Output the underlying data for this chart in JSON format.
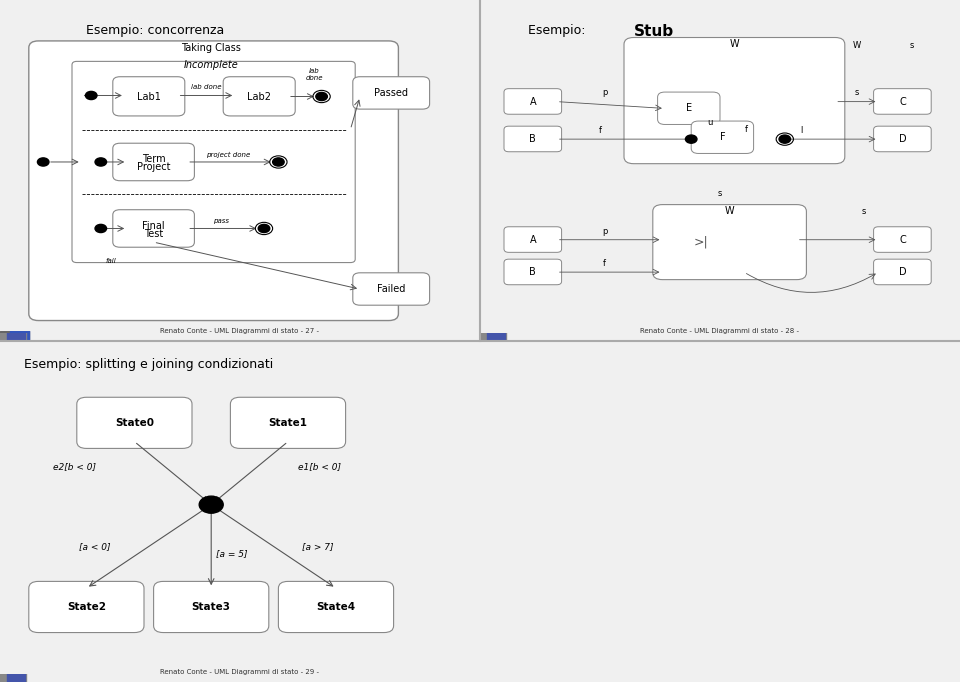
{
  "bg_color": "#f0f0f0",
  "panel_bg": "#ffffff",
  "title1": "Esempio: concorrenza",
  "title2": "Esempio: Stub",
  "title3": "Esempio: splitting e joining condizionati",
  "footer1": "Renato Conte - UML Diagrammi di stato - 27 -",
  "footer2": "Renato Conte - UML Diagrammi di stato - 28 -",
  "footer3": "Renato Conte - UML Diagrammi di stato - 29 -",
  "accent_color": "#4455aa",
  "line_color": "#555555",
  "state_fill": "#ffffff",
  "state_edge": "#888888"
}
